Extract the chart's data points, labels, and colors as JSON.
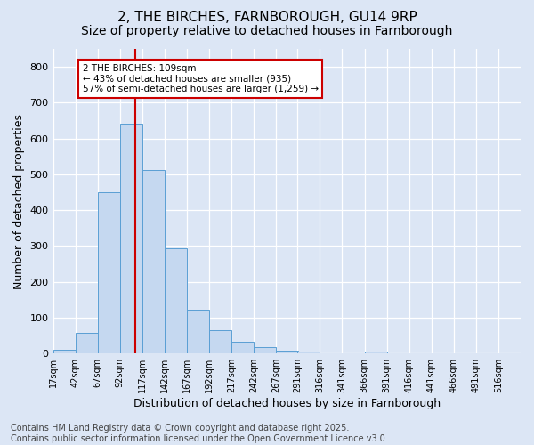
{
  "title_line1": "2, THE BIRCHES, FARNBOROUGH, GU14 9RP",
  "title_line2": "Size of property relative to detached houses in Farnborough",
  "xlabel": "Distribution of detached houses by size in Farnborough",
  "ylabel": "Number of detached properties",
  "bar_color": "#c5d8f0",
  "bar_edge_color": "#5a9fd4",
  "bar_values": [
    11,
    57,
    450,
    642,
    511,
    293,
    122,
    64,
    34,
    19,
    8,
    5,
    0,
    0,
    5,
    0,
    0,
    0,
    0,
    0
  ],
  "bin_starts": [
    17,
    42,
    67,
    92,
    117,
    142,
    167,
    192,
    217,
    242,
    267,
    291,
    316,
    341,
    366,
    391,
    416,
    441,
    466,
    491
  ],
  "bin_width": 25,
  "tick_positions": [
    17,
    42,
    67,
    92,
    117,
    142,
    167,
    192,
    217,
    242,
    267,
    291,
    316,
    341,
    366,
    391,
    416,
    441,
    466,
    491,
    516
  ],
  "tick_labels": [
    "17sqm",
    "42sqm",
    "67sqm",
    "92sqm",
    "117sqm",
    "142sqm",
    "167sqm",
    "192sqm",
    "217sqm",
    "242sqm",
    "267sqm",
    "291sqm",
    "316sqm",
    "341sqm",
    "366sqm",
    "391sqm",
    "416sqm",
    "441sqm",
    "466sqm",
    "491sqm",
    "516sqm"
  ],
  "ylim": [
    0,
    850
  ],
  "yticks": [
    0,
    100,
    200,
    300,
    400,
    500,
    600,
    700,
    800
  ],
  "red_line_x": 109,
  "annotation_line1": "2 THE BIRCHES: 109sqm",
  "annotation_line2": "← 43% of detached houses are smaller (935)",
  "annotation_line3": "57% of semi-detached houses are larger (1,259) →",
  "annotation_box_fc": "#ffffff",
  "annotation_box_ec": "#cc0000",
  "red_line_color": "#cc0000",
  "footer_text": "Contains HM Land Registry data © Crown copyright and database right 2025.\nContains public sector information licensed under the Open Government Licence v3.0.",
  "bg_color": "#dce6f5",
  "grid_color": "#ffffff",
  "title_fontsize": 11,
  "subtitle_fontsize": 10,
  "axis_label_fontsize": 9,
  "tick_fontsize": 7,
  "footer_fontsize": 7
}
